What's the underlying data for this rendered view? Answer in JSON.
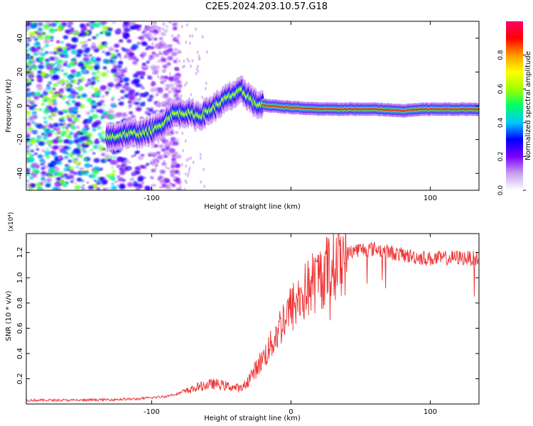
{
  "title": "C2E5.2024.203.10.57.G18",
  "chart_data": [
    {
      "type": "heatmap",
      "xlabel": "Height of straight line (km)",
      "ylabel": "Frequency (Hz)",
      "xlim": [
        -190,
        135
      ],
      "ylim": [
        -50,
        50
      ],
      "x_ticks": [
        -100,
        0,
        100
      ],
      "x_tick_labels": [
        "-100",
        "",
        "100"
      ],
      "y_ticks": [
        -40,
        -20,
        0,
        20,
        40
      ],
      "y_tick_labels": [
        "-40",
        "-20",
        "0",
        "20",
        "40"
      ],
      "colorbar": {
        "label": "Normalized spectral amplitude",
        "range": [
          0,
          1
        ],
        "ticks": [
          0.0,
          0.2,
          0.4,
          0.6,
          0.8
        ],
        "tick_labels": [
          "0.0",
          "0.2",
          "0.4",
          "0.6",
          "0.8"
        ],
        "colors": [
          "#ffffff",
          "#c8a0f0",
          "#7a00ff",
          "#0000ff",
          "#00c8ff",
          "#00ff66",
          "#a0ff00",
          "#ffff00",
          "#ff9900",
          "#ff0000",
          "#ff0066"
        ]
      },
      "ridge": {
        "x": [
          -132,
          -120,
          -105,
          -95,
          -85,
          -75,
          -65,
          -55,
          -45,
          -35,
          -25,
          -15,
          0,
          20,
          40,
          60,
          80,
          95,
          110,
          135
        ],
        "y": [
          -19,
          -17,
          -16,
          -13,
          -5,
          -4,
          -6,
          -1,
          5,
          9,
          1,
          0,
          -1,
          -2,
          -2,
          -2,
          -3,
          -2,
          -2,
          -2
        ]
      },
      "grid": false
    },
    {
      "type": "line",
      "xlabel": "Height of straight line (km)",
      "ylabel": "SNR (10 * v/v)",
      "y_multiplier": "(x10⁴)",
      "xlim": [
        -190,
        135
      ],
      "ylim": [
        0,
        1.35
      ],
      "x_ticks": [
        -100,
        0,
        100
      ],
      "x_tick_labels": [
        "-100",
        "0",
        "100"
      ],
      "y_ticks": [
        0.2,
        0.4,
        0.6,
        0.8,
        1.0,
        1.2
      ],
      "y_tick_labels": [
        "0.2",
        "0.4",
        "0.6",
        "0.8",
        "1.0",
        "1.2"
      ],
      "color": "#ee3333",
      "envelope": {
        "x": [
          -190,
          -150,
          -110,
          -90,
          -75,
          -65,
          -55,
          -45,
          -35,
          -25,
          -15,
          -5,
          5,
          15,
          25,
          35,
          45,
          60,
          80,
          100,
          120,
          135
        ],
        "y": [
          0.03,
          0.03,
          0.04,
          0.06,
          0.1,
          0.14,
          0.16,
          0.14,
          0.12,
          0.28,
          0.45,
          0.68,
          0.82,
          0.95,
          1.05,
          1.15,
          1.22,
          1.23,
          1.18,
          1.15,
          1.16,
          1.15
        ]
      },
      "grid": false
    }
  ]
}
